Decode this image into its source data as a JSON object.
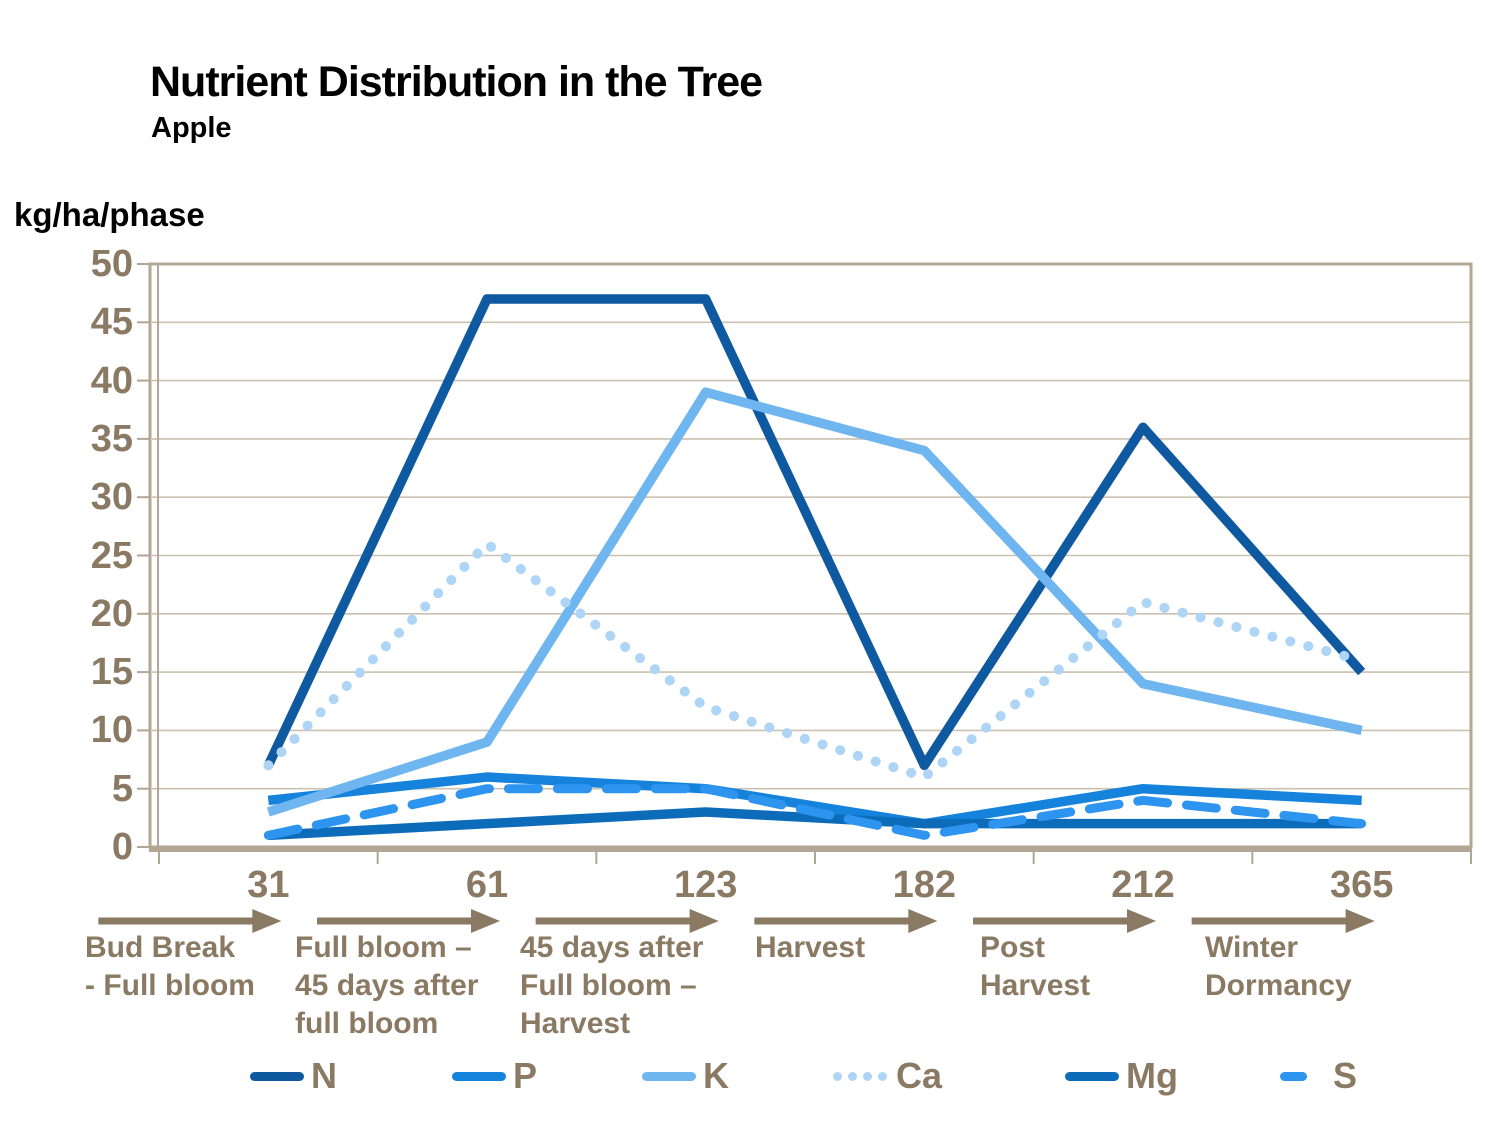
{
  "title": "Nutrient Distribution in the Tree",
  "subtitle": "Apple",
  "colors": {
    "title_blue": "#1B74CE",
    "axis_text_brown": "#8A7963",
    "gridline": "#CBC1B1",
    "plot_border": "#B2A695",
    "background": "#FFFFFF"
  },
  "chart_data": {
    "type": "line",
    "title": "Nutrient Distribution in the Tree",
    "subtitle": "Apple",
    "ylabel": "kg/ha/phase",
    "ylim": [
      0,
      50
    ],
    "y_ticks": [
      0,
      5,
      10,
      15,
      20,
      25,
      30,
      35,
      40,
      45,
      50
    ],
    "grid": "horizontal",
    "legend_position": "bottom",
    "x_tick_labels": [
      "31",
      "61",
      "123",
      "182",
      "212",
      "365"
    ],
    "phase_labels": [
      [
        "Bud Break",
        "- Full bloom"
      ],
      [
        "Full bloom –",
        "45 days after",
        "full bloom"
      ],
      [
        "45 days after",
        "Full bloom –",
        "Harvest"
      ],
      [
        "Harvest"
      ],
      [
        "Post",
        "Harvest"
      ],
      [
        "Winter",
        "Dormancy"
      ]
    ],
    "series": [
      {
        "name": "N",
        "color": "#0E59A0",
        "style": "solid",
        "values": [
          7,
          47,
          47,
          7,
          36,
          15
        ]
      },
      {
        "name": "P",
        "color": "#1583DB",
        "style": "solid",
        "values": [
          4,
          6,
          5,
          2,
          5,
          4
        ]
      },
      {
        "name": "K",
        "color": "#6FB5F0",
        "style": "solid",
        "values": [
          3,
          9,
          39,
          34,
          14,
          10
        ]
      },
      {
        "name": "Ca",
        "color": "#AED5F5",
        "style": "dotted",
        "values": [
          7,
          26,
          12,
          6,
          21,
          16
        ]
      },
      {
        "name": "Mg",
        "color": "#0D6CBA",
        "style": "solid",
        "values": [
          1,
          2,
          3,
          2,
          2,
          2
        ]
      },
      {
        "name": "S",
        "color": "#2D95EF",
        "style": "dashed",
        "values": [
          1,
          5,
          5,
          1,
          4,
          2
        ]
      }
    ]
  }
}
